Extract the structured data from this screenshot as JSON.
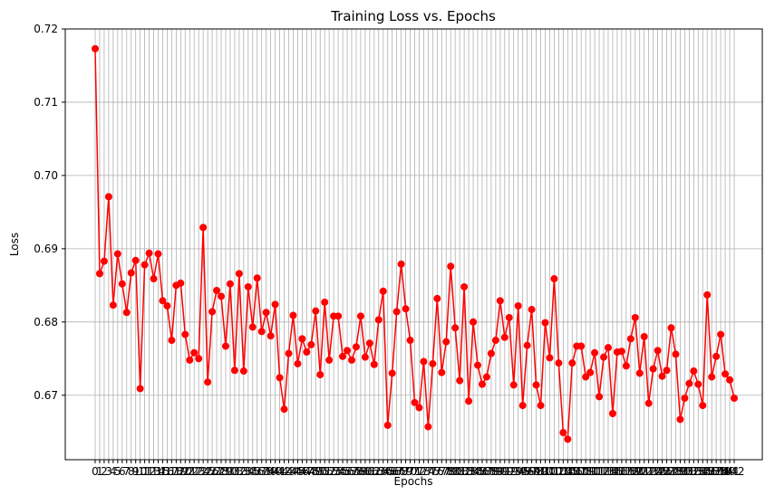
{
  "chart_data": {
    "type": "line",
    "title": "Training Loss vs. Epochs",
    "xlabel": "Epochs",
    "ylabel": "Loss",
    "ylim": [
      0.6612,
      0.72
    ],
    "yticks": [
      0.67,
      0.68,
      0.69,
      0.7,
      0.71,
      0.72
    ],
    "ytick_labels": [
      "0.67",
      "0.68",
      "0.69",
      "0.70",
      "0.71",
      "0.72"
    ],
    "grid": true,
    "line_color": "#ff0000",
    "marker": "circle",
    "x_start": 0,
    "series": [
      {
        "values": [
          0.7173,
          0.6866,
          0.6883,
          0.6971,
          0.6823,
          0.6893,
          0.6852,
          0.6813,
          0.6867,
          0.6884,
          0.6709,
          0.6878,
          0.6894,
          0.6859,
          0.6893,
          0.6829,
          0.6822,
          0.6775,
          0.685,
          0.6853,
          0.6783,
          0.6748,
          0.6758,
          0.675,
          0.6929,
          0.6718,
          0.6814,
          0.6843,
          0.6835,
          0.6767,
          0.6852,
          0.6734,
          0.6866,
          0.6733,
          0.6848,
          0.6793,
          0.686,
          0.6787,
          0.6813,
          0.6781,
          0.6824,
          0.6724,
          0.6681,
          0.6757,
          0.6809,
          0.6743,
          0.6777,
          0.6759,
          0.6769,
          0.6815,
          0.6728,
          0.6827,
          0.6748,
          0.6808,
          0.6808,
          0.6753,
          0.6761,
          0.6748,
          0.6766,
          0.6808,
          0.6752,
          0.6771,
          0.6742,
          0.6803,
          0.6842,
          0.6659,
          0.673,
          0.6814,
          0.6879,
          0.6818,
          0.6775,
          0.669,
          0.6683,
          0.6746,
          0.6657,
          0.6743,
          0.6832,
          0.6731,
          0.6773,
          0.6876,
          0.6792,
          0.672,
          0.6848,
          0.6692,
          0.68,
          0.6741,
          0.6715,
          0.6725,
          0.6757,
          0.6775,
          0.6829,
          0.6779,
          0.6806,
          0.6714,
          0.6822,
          0.6686,
          0.6768,
          0.6817,
          0.6714,
          0.6686,
          0.6799,
          0.6751,
          0.6859,
          0.6744,
          0.6649,
          0.664,
          0.6744,
          0.6767,
          0.6767,
          0.6725,
          0.6731,
          0.6758,
          0.6698,
          0.6752,
          0.6765,
          0.6675,
          0.6759,
          0.676,
          0.674,
          0.6777,
          0.6806,
          0.673,
          0.678,
          0.6689,
          0.6736,
          0.6761,
          0.6726,
          0.6734,
          0.6792,
          0.6756,
          0.6667,
          0.6696,
          0.6716,
          0.6733,
          0.6715,
          0.6686,
          0.6837,
          0.6725,
          0.6753,
          0.6783,
          0.6729,
          0.6721,
          0.6696
        ]
      }
    ]
  }
}
